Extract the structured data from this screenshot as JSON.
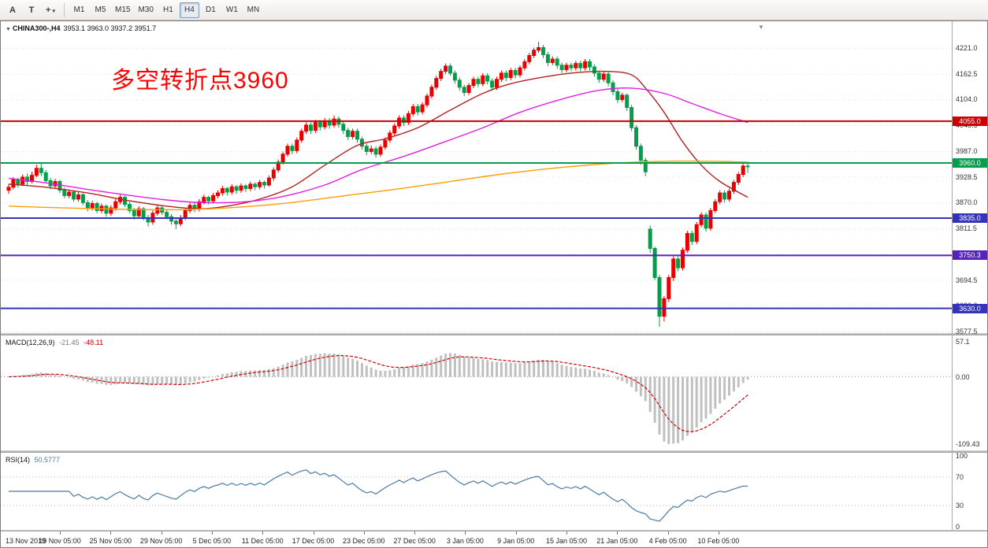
{
  "toolbar": {
    "tools": [
      {
        "name": "arrow-tool",
        "glyph": "A"
      },
      {
        "name": "text-tool",
        "glyph": "T"
      },
      {
        "name": "draw-tool",
        "glyph": "+",
        "caret": "▾"
      }
    ],
    "periods": [
      "M1",
      "M5",
      "M15",
      "M30",
      "H1",
      "H4",
      "D1",
      "W1",
      "MN"
    ],
    "active_period": "H4"
  },
  "chart": {
    "collapse_icon": "▼",
    "symbol_title": "CHINA300-,H4",
    "ohlc_text": "3953.1 3963.0 3937.2 3951.7",
    "shift_icon": "▼"
  },
  "indicators": {
    "macd": {
      "label": "MACD(12,26,9)",
      "main_text": "-21.45",
      "signal_text": "-48.11"
    },
    "rsi": {
      "label": "RSI(14)",
      "value_text": "50.5777"
    }
  },
  "chart_data": {
    "type": "candlestick",
    "symbol": "CHINA300-",
    "timeframe": "H4",
    "last_values": {
      "open": 3953.1,
      "high": 3963.0,
      "low": 3937.2,
      "close": 3951.7
    },
    "annotation": {
      "text": "多空转折点3960",
      "color": "#ff0000"
    },
    "price_axis": {
      "min": 3577.5,
      "max": 4221.0,
      "tick_step": 58.5,
      "ticks": [
        4221.0,
        4162.5,
        4104.0,
        4045.5,
        3987.0,
        3928.5,
        3870.0,
        3811.5,
        3753.0,
        3694.5,
        3636.0,
        3577.5
      ]
    },
    "x_axis": {
      "labels": [
        "13 Nov 2019",
        "19 Nov 05:00",
        "25 Nov 05:00",
        "29 Nov 05:00",
        "5 Dec 05:00",
        "11 Dec 05:00",
        "17 Dec 05:00",
        "23 Dec 05:00",
        "27 Dec 05:00",
        "3 Jan 05:00",
        "9 Jan 05:00",
        "15 Jan 05:00",
        "21 Jan 05:00",
        "4 Feb 05:00",
        "10 Feb 05:00"
      ]
    },
    "horizontal_lines": [
      {
        "price": 4055.0,
        "label": "4055.0",
        "color": "#cc0000"
      },
      {
        "price": 3960.0,
        "label": "3960.0",
        "color": "#00a04a"
      },
      {
        "price": 3835.0,
        "label": "3835.0",
        "color": "#3333bb"
      },
      {
        "price": 3750.3,
        "label": "3750.3",
        "color": "#5522bb"
      },
      {
        "price": 3630.0,
        "label": "3630.0",
        "color": "#3333bb"
      }
    ],
    "moving_averages": [
      {
        "name": "ma-fast-red",
        "color": "#b22222",
        "points": [
          [
            0,
            3912
          ],
          [
            8,
            3905
          ],
          [
            17,
            3892
          ],
          [
            25,
            3876
          ],
          [
            34,
            3862
          ],
          [
            41,
            3856
          ],
          [
            47,
            3862
          ],
          [
            54,
            3878
          ],
          [
            61,
            3906
          ],
          [
            68,
            3955
          ],
          [
            75,
            4000
          ],
          [
            81,
            4015
          ],
          [
            88,
            4040
          ],
          [
            95,
            4080
          ],
          [
            102,
            4118
          ],
          [
            108,
            4140
          ],
          [
            115,
            4155
          ],
          [
            122,
            4165
          ],
          [
            129,
            4168
          ],
          [
            134,
            4160
          ],
          [
            137,
            4130
          ],
          [
            141,
            4075
          ],
          [
            145,
            4008
          ],
          [
            149,
            3955
          ],
          [
            153,
            3918
          ],
          [
            159,
            3882
          ]
        ]
      },
      {
        "name": "ma-mid-magenta",
        "color": "#e020e0",
        "points": [
          [
            0,
            3925
          ],
          [
            8,
            3915
          ],
          [
            17,
            3900
          ],
          [
            25,
            3888
          ],
          [
            34,
            3876
          ],
          [
            42,
            3870
          ],
          [
            51,
            3872
          ],
          [
            59,
            3884
          ],
          [
            68,
            3910
          ],
          [
            76,
            3945
          ],
          [
            85,
            3975
          ],
          [
            93,
            4005
          ],
          [
            102,
            4040
          ],
          [
            110,
            4075
          ],
          [
            119,
            4105
          ],
          [
            127,
            4125
          ],
          [
            134,
            4130
          ],
          [
            141,
            4118
          ],
          [
            147,
            4095
          ],
          [
            153,
            4072
          ],
          [
            159,
            4052
          ]
        ]
      },
      {
        "name": "ma-slow-orange",
        "color": "#ff9c00",
        "points": [
          [
            0,
            3862
          ],
          [
            12,
            3858
          ],
          [
            24,
            3855
          ],
          [
            36,
            3854
          ],
          [
            47,
            3858
          ],
          [
            59,
            3868
          ],
          [
            71,
            3884
          ],
          [
            83,
            3900
          ],
          [
            95,
            3918
          ],
          [
            107,
            3936
          ],
          [
            119,
            3950
          ],
          [
            131,
            3960
          ],
          [
            142,
            3964
          ],
          [
            151,
            3964
          ],
          [
            159,
            3962
          ]
        ]
      }
    ],
    "colors": {
      "up": "#e60000",
      "down": "#00a04a",
      "grid": "#d9d9d9",
      "axis_text": "#333333"
    },
    "macd": {
      "label": "MACD(12,26,9)",
      "main": -21.45,
      "signal": -48.11,
      "params": [
        12,
        26,
        9
      ],
      "scale_max": 57.1,
      "scale_min": -109.43,
      "scale_labels": {
        "max": "57.1",
        "zero": "0.00",
        "min": "-109.43"
      },
      "hist_color": "#c0c0c0",
      "signal_color": "#d00000"
    },
    "rsi": {
      "label": "RSI(14)",
      "value": 50.5777,
      "period": 14,
      "levels": [
        100,
        70,
        30,
        0
      ],
      "level_labels": [
        "100",
        "70",
        "30",
        "0"
      ],
      "line_color": "#4a7aa8"
    },
    "candles": [
      [
        3898,
        3912,
        3890,
        3905
      ],
      [
        3905,
        3928,
        3900,
        3922
      ],
      [
        3922,
        3926,
        3904,
        3912
      ],
      [
        3912,
        3934,
        3908,
        3928
      ],
      [
        3928,
        3936,
        3910,
        3918
      ],
      [
        3918,
        3940,
        3914,
        3932
      ],
      [
        3932,
        3956,
        3928,
        3948
      ],
      [
        3948,
        3958,
        3930,
        3938
      ],
      [
        3938,
        3944,
        3914,
        3920
      ],
      [
        3920,
        3926,
        3900,
        3908
      ],
      [
        3908,
        3924,
        3902,
        3918
      ],
      [
        3918,
        3922,
        3892,
        3898
      ],
      [
        3898,
        3904,
        3880,
        3886
      ],
      [
        3886,
        3900,
        3880,
        3894
      ],
      [
        3894,
        3898,
        3872,
        3878
      ],
      [
        3878,
        3894,
        3872,
        3888
      ],
      [
        3888,
        3892,
        3864,
        3870
      ],
      [
        3870,
        3876,
        3850,
        3858
      ],
      [
        3858,
        3874,
        3852,
        3868
      ],
      [
        3868,
        3872,
        3846,
        3852
      ],
      [
        3852,
        3868,
        3846,
        3862
      ],
      [
        3862,
        3866,
        3838,
        3846
      ],
      [
        3846,
        3864,
        3840,
        3858
      ],
      [
        3858,
        3878,
        3852,
        3872
      ],
      [
        3872,
        3888,
        3866,
        3882
      ],
      [
        3882,
        3886,
        3860,
        3866
      ],
      [
        3866,
        3872,
        3846,
        3852
      ],
      [
        3852,
        3858,
        3832,
        3840
      ],
      [
        3840,
        3862,
        3834,
        3856
      ],
      [
        3856,
        3860,
        3830,
        3836
      ],
      [
        3836,
        3842,
        3816,
        3826
      ],
      [
        3826,
        3852,
        3820,
        3846
      ],
      [
        3846,
        3864,
        3840,
        3858
      ],
      [
        3858,
        3862,
        3842,
        3848
      ],
      [
        3848,
        3854,
        3832,
        3838
      ],
      [
        3838,
        3844,
        3820,
        3828
      ],
      [
        3828,
        3834,
        3810,
        3822
      ],
      [
        3822,
        3842,
        3816,
        3836
      ],
      [
        3836,
        3858,
        3830,
        3852
      ],
      [
        3852,
        3870,
        3846,
        3864
      ],
      [
        3864,
        3870,
        3848,
        3856
      ],
      [
        3856,
        3878,
        3850,
        3872
      ],
      [
        3872,
        3888,
        3866,
        3882
      ],
      [
        3882,
        3886,
        3866,
        3874
      ],
      [
        3874,
        3892,
        3868,
        3886
      ],
      [
        3886,
        3898,
        3880,
        3892
      ],
      [
        3892,
        3908,
        3886,
        3902
      ],
      [
        3902,
        3906,
        3886,
        3894
      ],
      [
        3894,
        3912,
        3888,
        3906
      ],
      [
        3906,
        3910,
        3890,
        3898
      ],
      [
        3898,
        3914,
        3892,
        3908
      ],
      [
        3908,
        3912,
        3894,
        3902
      ],
      [
        3902,
        3918,
        3896,
        3912
      ],
      [
        3912,
        3916,
        3898,
        3906
      ],
      [
        3906,
        3922,
        3900,
        3916
      ],
      [
        3916,
        3920,
        3902,
        3910
      ],
      [
        3910,
        3932,
        3906,
        3926
      ],
      [
        3926,
        3950,
        3920,
        3944
      ],
      [
        3944,
        3968,
        3938,
        3962
      ],
      [
        3962,
        3986,
        3956,
        3980
      ],
      [
        3980,
        4004,
        3974,
        3998
      ],
      [
        3998,
        4004,
        3980,
        3988
      ],
      [
        3988,
        4018,
        3982,
        4012
      ],
      [
        4012,
        4038,
        4006,
        4032
      ],
      [
        4032,
        4052,
        4026,
        4046
      ],
      [
        4046,
        4052,
        4026,
        4034
      ],
      [
        4034,
        4058,
        4028,
        4052
      ],
      [
        4052,
        4058,
        4034,
        4042
      ],
      [
        4042,
        4062,
        4036,
        4056
      ],
      [
        4056,
        4062,
        4038,
        4046
      ],
      [
        4046,
        4068,
        4040,
        4060
      ],
      [
        4060,
        4066,
        4040,
        4048
      ],
      [
        4048,
        4054,
        4026,
        4034
      ],
      [
        4034,
        4040,
        4012,
        4020
      ],
      [
        4020,
        4038,
        4014,
        4032
      ],
      [
        4032,
        4038,
        4006,
        4014
      ],
      [
        4014,
        4020,
        3990,
        3998
      ],
      [
        3998,
        4004,
        3978,
        3986
      ],
      [
        3986,
        4000,
        3980,
        3992
      ],
      [
        3992,
        3998,
        3972,
        3980
      ],
      [
        3980,
        4002,
        3974,
        3996
      ],
      [
        3996,
        4018,
        3990,
        4012
      ],
      [
        4012,
        4034,
        4006,
        4028
      ],
      [
        4028,
        4050,
        4022,
        4044
      ],
      [
        4044,
        4068,
        4038,
        4062
      ],
      [
        4062,
        4068,
        4044,
        4052
      ],
      [
        4052,
        4078,
        4046,
        4072
      ],
      [
        4072,
        4094,
        4066,
        4088
      ],
      [
        4088,
        4094,
        4068,
        4076
      ],
      [
        4076,
        4098,
        4070,
        4092
      ],
      [
        4092,
        4118,
        4086,
        4112
      ],
      [
        4112,
        4138,
        4106,
        4132
      ],
      [
        4132,
        4158,
        4126,
        4152
      ],
      [
        4152,
        4174,
        4146,
        4168
      ],
      [
        4168,
        4186,
        4162,
        4180
      ],
      [
        4180,
        4186,
        4158,
        4164
      ],
      [
        4164,
        4170,
        4140,
        4148
      ],
      [
        4148,
        4154,
        4124,
        4132
      ],
      [
        4132,
        4138,
        4112,
        4120
      ],
      [
        4120,
        4142,
        4114,
        4136
      ],
      [
        4136,
        4156,
        4130,
        4150
      ],
      [
        4150,
        4156,
        4132,
        4140
      ],
      [
        4140,
        4164,
        4134,
        4158
      ],
      [
        4158,
        4164,
        4138,
        4146
      ],
      [
        4146,
        4152,
        4124,
        4132
      ],
      [
        4132,
        4156,
        4126,
        4150
      ],
      [
        4150,
        4170,
        4144,
        4164
      ],
      [
        4164,
        4170,
        4146,
        4154
      ],
      [
        4154,
        4176,
        4148,
        4170
      ],
      [
        4170,
        4176,
        4152,
        4160
      ],
      [
        4160,
        4182,
        4154,
        4176
      ],
      [
        4176,
        4196,
        4170,
        4190
      ],
      [
        4190,
        4210,
        4184,
        4204
      ],
      [
        4204,
        4222,
        4198,
        4216
      ],
      [
        4216,
        4235,
        4210,
        4222
      ],
      [
        4222,
        4228,
        4198,
        4206
      ],
      [
        4206,
        4212,
        4180,
        4188
      ],
      [
        4188,
        4202,
        4182,
        4196
      ],
      [
        4196,
        4202,
        4174,
        4182
      ],
      [
        4182,
        4188,
        4164,
        4172
      ],
      [
        4172,
        4188,
        4166,
        4182
      ],
      [
        4182,
        4188,
        4168,
        4176
      ],
      [
        4176,
        4192,
        4170,
        4186
      ],
      [
        4186,
        4192,
        4168,
        4176
      ],
      [
        4176,
        4196,
        4170,
        4190
      ],
      [
        4190,
        4196,
        4170,
        4178
      ],
      [
        4178,
        4184,
        4156,
        4164
      ],
      [
        4164,
        4170,
        4142,
        4150
      ],
      [
        4150,
        4168,
        4144,
        4162
      ],
      [
        4162,
        4168,
        4134,
        4142
      ],
      [
        4142,
        4148,
        4114,
        4122
      ],
      [
        4122,
        4128,
        4096,
        4104
      ],
      [
        4104,
        4120,
        4098,
        4114
      ],
      [
        4114,
        4118,
        4078,
        4086
      ],
      [
        4086,
        4092,
        4032,
        4040
      ],
      [
        4040,
        4046,
        3990,
        3998
      ],
      [
        3998,
        4004,
        3956,
        3966
      ],
      [
        3966,
        3972,
        3930,
        3940
      ],
      [
        3810,
        3818,
        3756,
        3766
      ],
      [
        3766,
        3770,
        3694,
        3700
      ],
      [
        3700,
        3706,
        3588,
        3612
      ],
      [
        3612,
        3658,
        3600,
        3652
      ],
      [
        3652,
        3706,
        3644,
        3700
      ],
      [
        3700,
        3748,
        3692,
        3742
      ],
      [
        3742,
        3748,
        3714,
        3722
      ],
      [
        3722,
        3768,
        3716,
        3762
      ],
      [
        3762,
        3806,
        3756,
        3800
      ],
      [
        3800,
        3806,
        3774,
        3782
      ],
      [
        3782,
        3826,
        3776,
        3820
      ],
      [
        3820,
        3848,
        3814,
        3842
      ],
      [
        3842,
        3848,
        3804,
        3812
      ],
      [
        3812,
        3858,
        3806,
        3852
      ],
      [
        3852,
        3878,
        3846,
        3872
      ],
      [
        3872,
        3898,
        3866,
        3892
      ],
      [
        3892,
        3898,
        3870,
        3878
      ],
      [
        3878,
        3902,
        3872,
        3896
      ],
      [
        3896,
        3922,
        3890,
        3916
      ],
      [
        3916,
        3940,
        3910,
        3934
      ],
      [
        3934,
        3958,
        3928,
        3953.1
      ],
      [
        3953.1,
        3963,
        3937.2,
        3951.7
      ]
    ]
  }
}
